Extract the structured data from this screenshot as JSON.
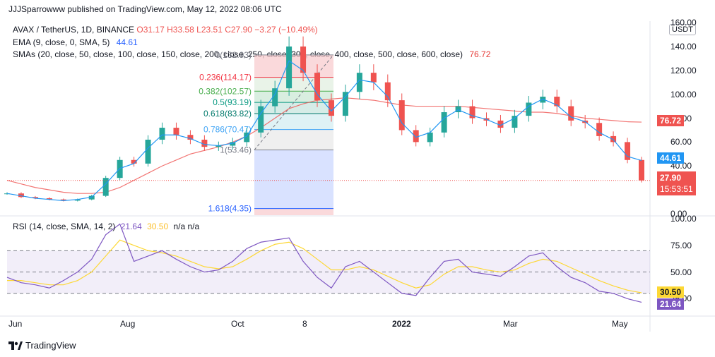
{
  "header": {
    "published_by": "JJJSparrowww published on TradingView.com, May 12, 2022 08:06 UTC"
  },
  "legend": {
    "symbol": "AVAX / TetherUS, 1D, BINANCE",
    "o": "O31.17",
    "h": "H33.58",
    "l": "L23.51",
    "c": "C27.90",
    "change": "−3.27 (−10.49%)",
    "ema_label": "EMA (9, close, 0, SMA, 5)",
    "ema_value": "44.61",
    "sma_label": "SMAs (20, close, 50, close, 100, close, 150, close, 200, close, 250, close, 300, close, 400, close, 500, close, 600, close)",
    "sma_value": "76.72"
  },
  "currency": "USDT",
  "price_axis": [
    "160.00",
    "140.00",
    "120.00",
    "100.00",
    "80.00",
    "60.00",
    "40.00",
    "20.00",
    "0.00"
  ],
  "price_badges": {
    "sma": "76.72",
    "ema": "44.61",
    "last": "27.90",
    "countdown": "15:53:51"
  },
  "fib_levels": [
    {
      "label": "0(132.93)",
      "color": "#787b86"
    },
    {
      "label": "0.236(114.17)",
      "color": "#f23645"
    },
    {
      "label": "0.382(102.57)",
      "color": "#4caf50"
    },
    {
      "label": "0.5(93.19)",
      "color": "#089981"
    },
    {
      "label": "0.618(83.82)",
      "color": "#00796b"
    },
    {
      "label": "0.786(70.47)",
      "color": "#42a5f5"
    },
    {
      "label": "1(53.46)",
      "color": "#787b86"
    },
    {
      "label": "1.618(4.35)",
      "color": "#2962ff"
    }
  ],
  "rsi": {
    "label": "RSI (14, close, SMA, 14, 2)",
    "value": "21.64",
    "ma_value": "30.50",
    "extra": "n/a  n/a",
    "axis": [
      "100.00",
      "75.00",
      "50.00",
      "25.00"
    ]
  },
  "time_axis": [
    "Jun",
    "Aug",
    "Oct",
    "8",
    "2022",
    "Mar",
    "May"
  ],
  "footer": {
    "brand": "TradingView"
  },
  "chart_data": {
    "type": "line",
    "title": "AVAX / TetherUS, 1D, BINANCE",
    "ylim": [
      0,
      160
    ],
    "grid": true,
    "series": [
      {
        "name": "AVAX / TetherUS",
        "x": [
          "2021-05-25",
          "2021-06-10",
          "2021-06-25",
          "2021-07-10",
          "2021-07-25",
          "2021-08-05",
          "2021-08-12",
          "2021-08-20",
          "2021-08-28",
          "2021-09-05",
          "2021-09-12",
          "2021-09-20",
          "2021-09-28",
          "2021-10-05",
          "2021-10-12",
          "2021-10-20",
          "2021-10-28",
          "2021-11-05",
          "2021-11-12",
          "2021-11-17",
          "2021-11-22",
          "2021-11-30",
          "2021-12-08",
          "2021-12-15",
          "2021-12-22",
          "2021-12-29",
          "2022-01-05",
          "2022-01-12",
          "2022-01-20",
          "2022-01-26",
          "2022-02-03",
          "2022-02-10",
          "2022-02-18",
          "2022-02-25",
          "2022-03-05",
          "2022-03-12",
          "2022-03-20",
          "2022-03-28",
          "2022-04-03",
          "2022-04-10",
          "2022-04-18",
          "2022-04-26",
          "2022-05-02",
          "2022-05-06",
          "2022-05-10",
          "2022-05-12"
        ],
        "values": [
          17,
          14,
          13,
          12,
          11,
          12,
          15,
          30,
          45,
          42,
          62,
          72,
          66,
          62,
          56,
          57,
          60,
          68,
          90,
          105,
          140,
          118,
          95,
          82,
          102,
          118,
          110,
          95,
          70,
          60,
          68,
          85,
          90,
          80,
          78,
          72,
          82,
          93,
          98,
          90,
          78,
          76,
          65,
          60,
          45,
          27.9
        ]
      },
      {
        "name": "EMA (9, close, 0, SMA, 5)",
        "values": [
          17,
          15,
          13,
          12,
          11,
          12,
          14,
          25,
          38,
          42,
          55,
          66,
          66,
          63,
          58,
          57,
          59,
          65,
          84,
          100,
          128,
          120,
          100,
          86,
          98,
          112,
          110,
          98,
          76,
          64,
          68,
          80,
          87,
          82,
          79,
          74,
          80,
          90,
          96,
          91,
          81,
          77,
          68,
          62,
          48,
          44.61
        ]
      },
      {
        "name": "SMAs",
        "values": [
          28,
          25,
          22,
          20,
          18,
          17,
          17,
          18,
          22,
          28,
          34,
          40,
          45,
          50,
          53,
          56,
          60,
          65,
          72,
          80,
          88,
          92,
          95,
          96,
          97,
          96,
          95,
          93,
          91,
          90,
          90,
          90,
          90,
          89,
          88,
          87,
          86,
          85,
          85,
          84,
          82,
          80,
          79,
          78,
          77,
          76.72
        ]
      }
    ],
    "rsi_series": [
      {
        "name": "RSI",
        "values": [
          45,
          40,
          38,
          35,
          42,
          50,
          62,
          85,
          95,
          60,
          65,
          70,
          62,
          55,
          50,
          52,
          60,
          72,
          78,
          80,
          82,
          60,
          45,
          35,
          55,
          60,
          50,
          40,
          30,
          28,
          45,
          60,
          62,
          50,
          48,
          46,
          55,
          65,
          68,
          55,
          45,
          40,
          32,
          30,
          25,
          21.64
        ]
      },
      {
        "name": "RSI-based MA",
        "values": [
          42,
          42,
          40,
          38,
          38,
          42,
          50,
          65,
          80,
          75,
          70,
          68,
          65,
          60,
          55,
          53,
          55,
          62,
          70,
          76,
          78,
          72,
          62,
          52,
          52,
          55,
          52,
          46,
          40,
          35,
          38,
          48,
          55,
          55,
          52,
          50,
          52,
          58,
          62,
          60,
          54,
          48,
          42,
          37,
          33,
          30.5
        ]
      }
    ]
  }
}
